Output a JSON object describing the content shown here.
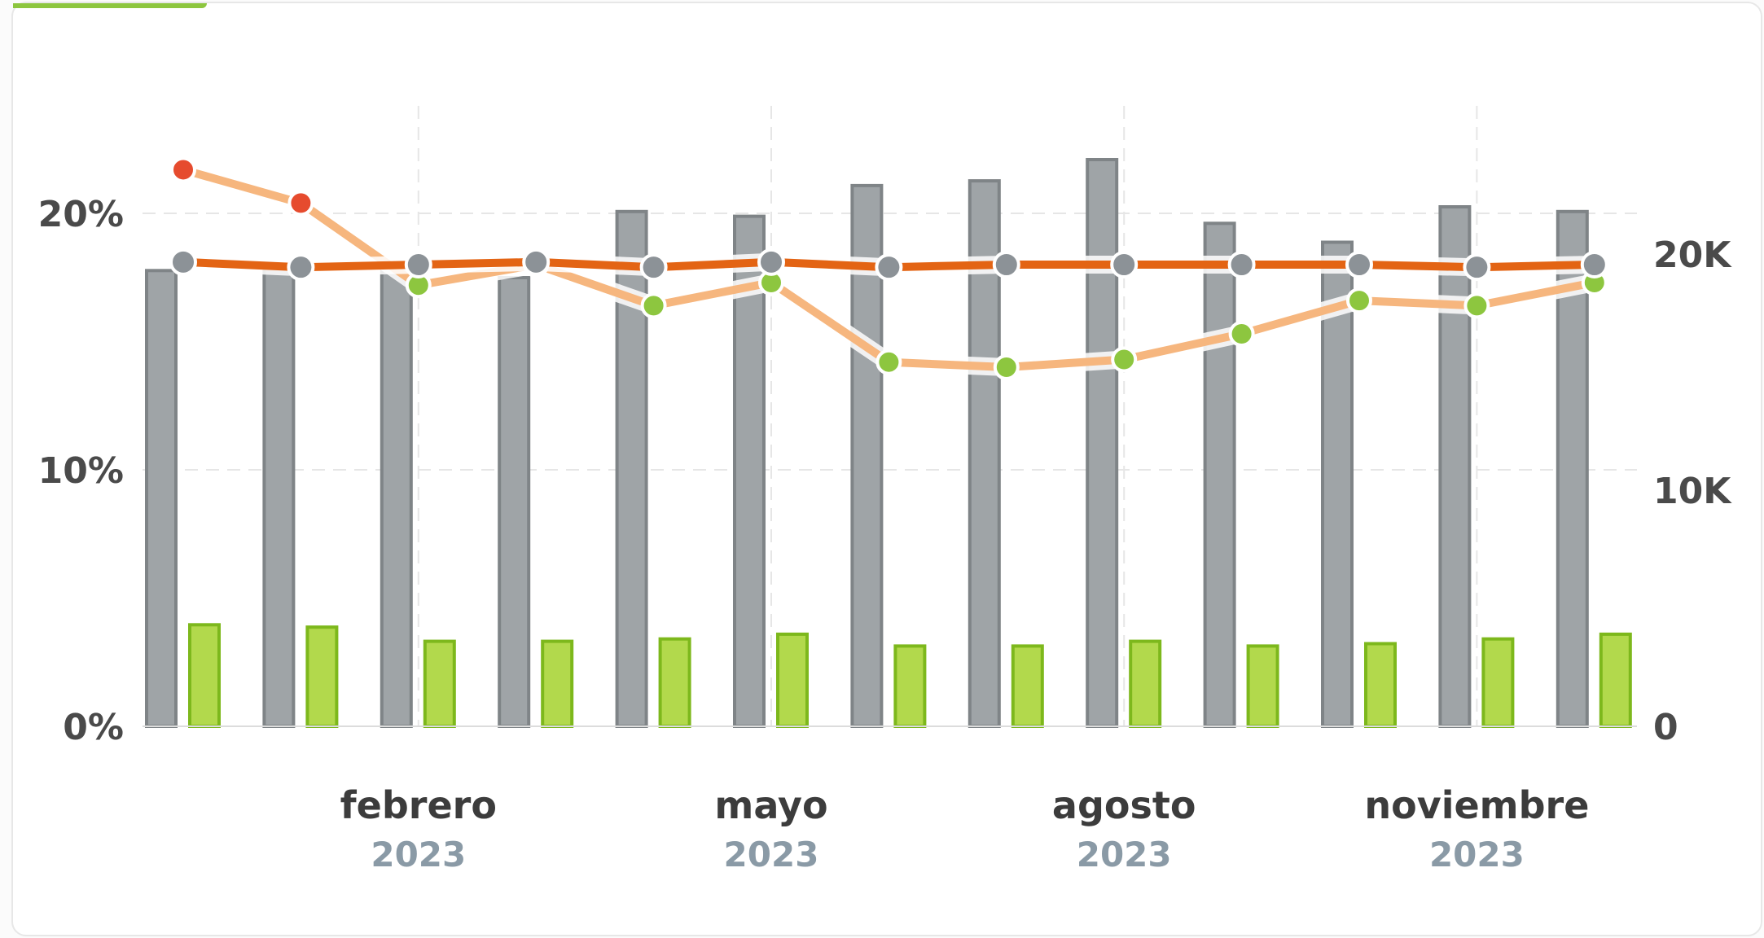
{
  "chart_data": {
    "type": "bar",
    "grid": true,
    "legend": "none",
    "x_labels": [
      {
        "month": "febrero",
        "year": "2023",
        "index": 2
      },
      {
        "month": "mayo",
        "year": "2023",
        "index": 5
      },
      {
        "month": "agosto",
        "year": "2023",
        "index": 8
      },
      {
        "month": "noviembre",
        "year": "2023",
        "index": 11
      }
    ],
    "y_left": {
      "ticks": [
        "0%",
        "10%",
        "20%"
      ],
      "tick_values": [
        0,
        10,
        20
      ],
      "range": [
        0,
        20
      ]
    },
    "y_right": {
      "ticks": [
        "0",
        "10K",
        "20K"
      ],
      "tick_values": [
        0,
        10000,
        20000
      ],
      "range": [
        0,
        20000
      ]
    },
    "series": [
      {
        "type": "bar",
        "axis": "right",
        "color": "#9fa4a7",
        "stroke": "#7f8487",
        "values": [
          19300,
          19500,
          19300,
          19000,
          21800,
          21600,
          22900,
          23100,
          24000,
          21300,
          20500,
          22000,
          21800
        ]
      },
      {
        "type": "bar",
        "axis": "right",
        "color": "#b2d94c",
        "stroke": "#7db81c",
        "values": [
          4300,
          4200,
          3600,
          3600,
          3700,
          3900,
          3400,
          3400,
          3600,
          3400,
          3500,
          3700,
          3900
        ]
      },
      {
        "type": "line",
        "axis": "left",
        "color": "#f6b67e",
        "values": [
          21.7,
          20.4,
          17.2,
          18.0,
          16.4,
          17.3,
          14.2,
          14.0,
          14.3,
          15.3,
          16.6,
          16.4,
          17.3
        ],
        "point_colors": [
          "#e64b2e",
          "#e64b2e",
          "#8dc63f",
          "#8dc63f",
          "#8dc63f",
          "#8dc63f",
          "#8dc63f",
          "#8dc63f",
          "#8dc63f",
          "#8dc63f",
          "#8dc63f",
          "#8dc63f",
          "#8dc63f"
        ]
      },
      {
        "type": "line",
        "axis": "left",
        "color": "#e36414",
        "point_color": "#8c9297",
        "values": [
          18.1,
          17.9,
          18.0,
          18.1,
          17.9,
          18.1,
          17.9,
          18.0,
          18.0,
          18.0,
          18.0,
          17.9,
          18.0
        ]
      }
    ]
  }
}
